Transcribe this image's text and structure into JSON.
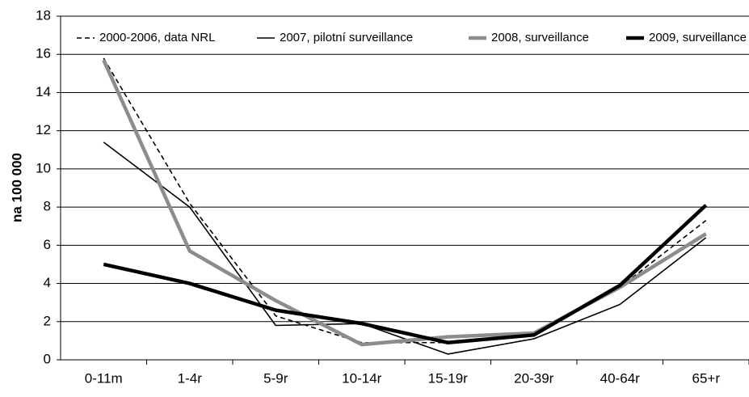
{
  "chart_data": {
    "type": "line",
    "y_label": "na 100 000",
    "categories": [
      "0-11m",
      "1-4r",
      "5-9r",
      "10-14r",
      "15-19r",
      "20-39r",
      "40-64r",
      "65+r"
    ],
    "series": [
      {
        "name": "2000-2006, data NRL",
        "color": "#000000",
        "style": "dashed",
        "weight": "thin",
        "values": [
          15.8,
          8.2,
          2.3,
          0.9,
          0.9,
          1.3,
          3.8,
          7.3
        ]
      },
      {
        "name": "2007, pilotní surveillance",
        "color": "#000000",
        "style": "solid",
        "weight": "thin",
        "values": [
          11.4,
          8.0,
          1.8,
          1.9,
          0.3,
          1.1,
          2.9,
          6.4
        ]
      },
      {
        "name": "2008, surveillance",
        "color": "#8c8c8c",
        "style": "solid",
        "weight": "thick",
        "values": [
          15.7,
          5.7,
          3.1,
          0.8,
          1.2,
          1.4,
          3.8,
          6.6
        ]
      },
      {
        "name": "2009, surveillance",
        "color": "#000000",
        "style": "solid",
        "weight": "thick",
        "values": [
          5.0,
          4.0,
          2.6,
          1.9,
          0.9,
          1.3,
          3.9,
          8.1
        ]
      }
    ],
    "ylim": [
      0,
      18
    ],
    "yticks": [
      0,
      2,
      4,
      6,
      8,
      10,
      12,
      14,
      16,
      18
    ],
    "grid": true,
    "legend": "top"
  }
}
